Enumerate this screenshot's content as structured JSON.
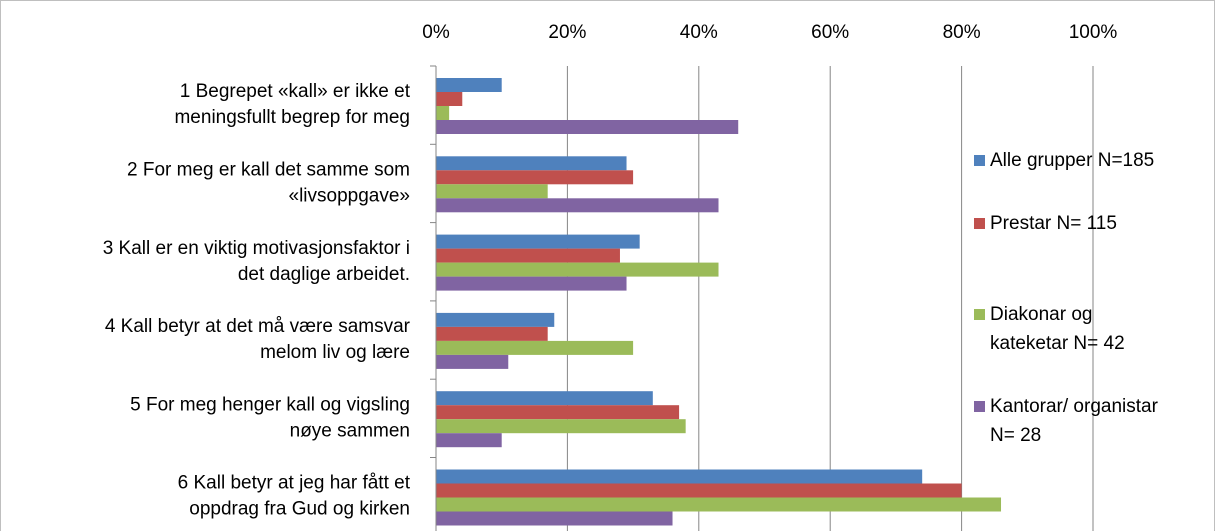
{
  "chart_data": {
    "type": "bar",
    "orientation": "horizontal",
    "categories": [
      [
        "1 Begrepet «kall» er ikke et",
        "meningsfullt begrep for meg"
      ],
      [
        "2 For meg er kall det samme som",
        "«livsoppgave»"
      ],
      [
        "3 Kall er en viktig motivasjonsfaktor i",
        "det daglige arbeidet."
      ],
      [
        "4 Kall betyr at det må være samsvar",
        "melom liv og lære"
      ],
      [
        "5 For meg henger kall og vigsling",
        "nøye sammen"
      ],
      [
        "6 Kall betyr at jeg har fått et",
        "oppdrag fra Gud og kirken"
      ]
    ],
    "series": [
      {
        "name": [
          "Alle grupper N=185"
        ],
        "color": "#4f81bd",
        "values": [
          10,
          29,
          31,
          18,
          33,
          74
        ]
      },
      {
        "name": [
          "Prestar N= 115"
        ],
        "color": "#c0504d",
        "values": [
          4,
          30,
          28,
          17,
          37,
          80
        ]
      },
      {
        "name": [
          "Diakonar og",
          "kateketar N= 42"
        ],
        "color": "#9bbb59",
        "values": [
          2,
          17,
          43,
          30,
          38,
          86
        ]
      },
      {
        "name": [
          "Kantorar/ organistar",
          "N= 28"
        ],
        "color": "#8064a2",
        "values": [
          46,
          43,
          29,
          11,
          10,
          36
        ]
      }
    ],
    "xlim": [
      0,
      100
    ],
    "xticks": [
      {
        "value": 0,
        "label": "0%"
      },
      {
        "value": 20,
        "label": "20%"
      },
      {
        "value": 40,
        "label": "40%"
      },
      {
        "value": 60,
        "label": "60%"
      },
      {
        "value": 80,
        "label": "80%"
      },
      {
        "value": 100,
        "label": "100%"
      }
    ],
    "grid": true,
    "legend": "right"
  }
}
